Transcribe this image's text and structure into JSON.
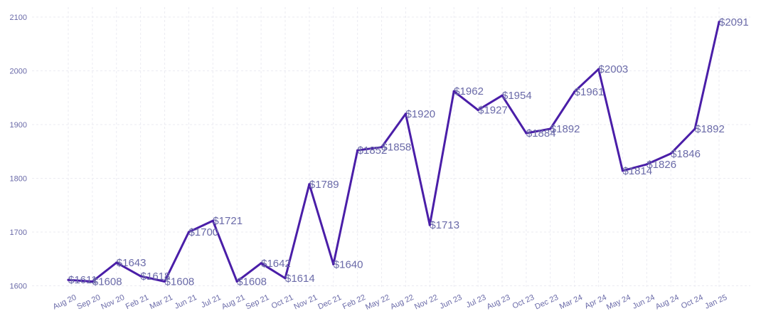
{
  "chart_data": {
    "type": "line",
    "title": "",
    "xlabel": "",
    "ylabel": "",
    "ylim": [
      1600,
      2100
    ],
    "y_ticks": [
      1600,
      1700,
      1800,
      1900,
      2000,
      2100
    ],
    "grid": true,
    "legend": "none",
    "value_prefix": "$",
    "colors": {
      "line": "#4a1ea8",
      "text": "#6a6aa8",
      "grid": "#ebebf2"
    },
    "categories": [
      "Aug 20",
      "Sep 20",
      "Nov 20",
      "Feb 21",
      "Mar 21",
      "Jun 21",
      "Jul 21",
      "Aug 21",
      "Sep 21",
      "Oct 21",
      "Nov 21",
      "Dec 21",
      "Feb 22",
      "May 22",
      "Aug 22",
      "Nov 22",
      "Jun 23",
      "Jul 23",
      "Aug 23",
      "Oct 23",
      "Dec 23",
      "Mar 24",
      "Apr 24",
      "May 24",
      "Jun 24",
      "Aug 24",
      "Oct 24",
      "Jan 25"
    ],
    "series": [
      {
        "values": [
          1611,
          1608,
          1643,
          1618,
          1608,
          1700,
          1721,
          1608,
          1642,
          1614,
          1789,
          1640,
          1852,
          1858,
          1920,
          1713,
          1962,
          1927,
          1954,
          1884,
          1892,
          1961,
          2003,
          1814,
          1826,
          1846,
          1892,
          2091
        ]
      }
    ]
  }
}
